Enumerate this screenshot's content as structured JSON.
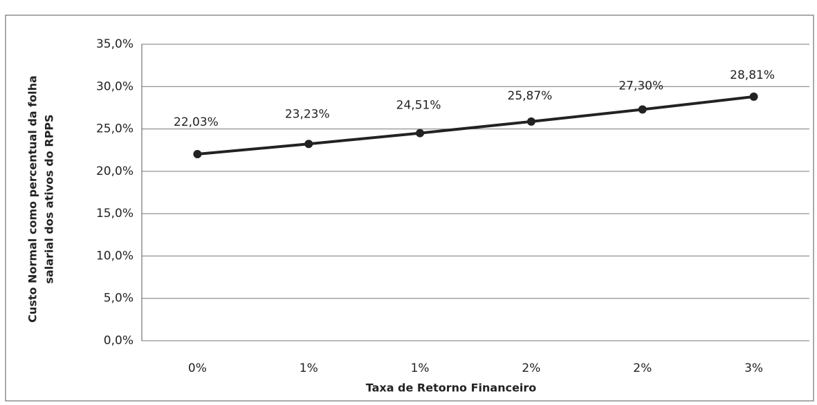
{
  "chart_data": {
    "type": "line",
    "y_label": [
      "Custo Normal como percentual da folha",
      "salarial dos ativos do RPPS"
    ],
    "x_label": "Taxa de Retorno Financeiro",
    "categories": [
      "0%",
      "1%",
      "1%",
      "2%",
      "2%",
      "3%"
    ],
    "series": [
      {
        "color": "#222222",
        "values": [
          22.03,
          23.23,
          24.51,
          25.87,
          27.3,
          28.81
        ],
        "value_labels": [
          "22,03%",
          "23,23%",
          "24,51%",
          "25,87%",
          "27,30%",
          "28,81%"
        ]
      }
    ],
    "ylim": [
      0,
      35
    ],
    "yticks": [
      {
        "value": 0,
        "label": "0,0%"
      },
      {
        "value": 5,
        "label": "5,0%"
      },
      {
        "value": 10,
        "label": "10,0%"
      },
      {
        "value": 15,
        "label": "15,0%"
      },
      {
        "value": 20,
        "label": "20,0%"
      },
      {
        "value": 25,
        "label": "25,0%"
      },
      {
        "value": 30,
        "label": "30,0%"
      },
      {
        "value": 35,
        "label": "35,0%"
      }
    ],
    "grid": true
  }
}
